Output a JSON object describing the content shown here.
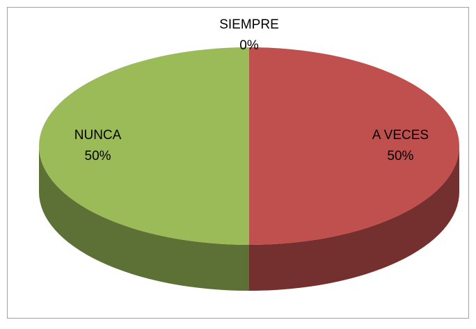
{
  "chart_data": {
    "type": "pie",
    "categories": [
      "SIEMPRE",
      "A VECES",
      "NUNCA"
    ],
    "values": [
      0,
      50,
      50
    ],
    "value_labels": [
      "0%",
      "50%",
      "50%"
    ],
    "colors": [
      "#4f81bd",
      "#c0504d",
      "#9bbb59"
    ]
  }
}
